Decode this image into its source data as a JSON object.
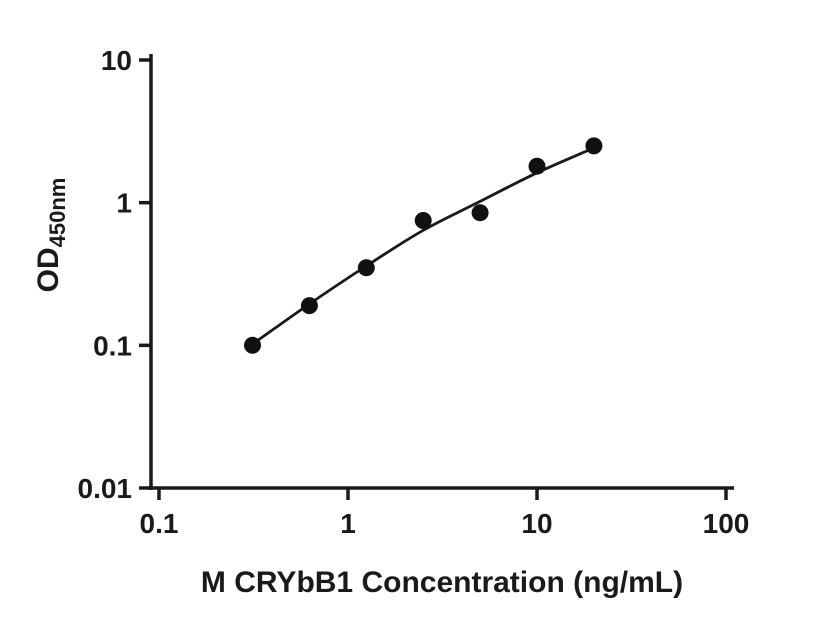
{
  "chart_data": {
    "type": "scatter",
    "title": "",
    "xlabel": "M CRYbB1 Concentration (ng/mL)",
    "ylabel": "OD",
    "ylabel_subscript": "450nm",
    "x_scale": "log",
    "y_scale": "log",
    "xlim": [
      0.1,
      100
    ],
    "ylim": [
      0.01,
      10
    ],
    "grid": false,
    "legend": "none",
    "x_ticks": [
      {
        "value": 0.1,
        "label": "0.1"
      },
      {
        "value": 1,
        "label": "1"
      },
      {
        "value": 10,
        "label": "10"
      },
      {
        "value": 100,
        "label": "100"
      }
    ],
    "y_ticks": [
      {
        "value": 0.01,
        "label": "0.01"
      },
      {
        "value": 0.1,
        "label": "0.1"
      },
      {
        "value": 1,
        "label": "1"
      },
      {
        "value": 10,
        "label": "10"
      }
    ],
    "series": [
      {
        "name": "standard-points",
        "kind": "scatter",
        "points": [
          {
            "x": 0.3125,
            "y": 0.1
          },
          {
            "x": 0.625,
            "y": 0.19
          },
          {
            "x": 1.25,
            "y": 0.35
          },
          {
            "x": 2.5,
            "y": 0.75
          },
          {
            "x": 5,
            "y": 0.85
          },
          {
            "x": 10,
            "y": 1.8
          },
          {
            "x": 20,
            "y": 2.5
          }
        ]
      },
      {
        "name": "fitted-curve",
        "kind": "line",
        "points": [
          {
            "x": 0.3125,
            "y": 0.102
          },
          {
            "x": 0.625,
            "y": 0.195
          },
          {
            "x": 1.25,
            "y": 0.36
          },
          {
            "x": 2.5,
            "y": 0.64
          },
          {
            "x": 5,
            "y": 1.02
          },
          {
            "x": 10,
            "y": 1.62
          },
          {
            "x": 20,
            "y": 2.42
          }
        ]
      }
    ],
    "colors": {
      "marker": "#111111",
      "line": "#1a1a1a",
      "axis": "#1a1a1a",
      "text": "#1a1a1a",
      "background": "#ffffff"
    }
  }
}
